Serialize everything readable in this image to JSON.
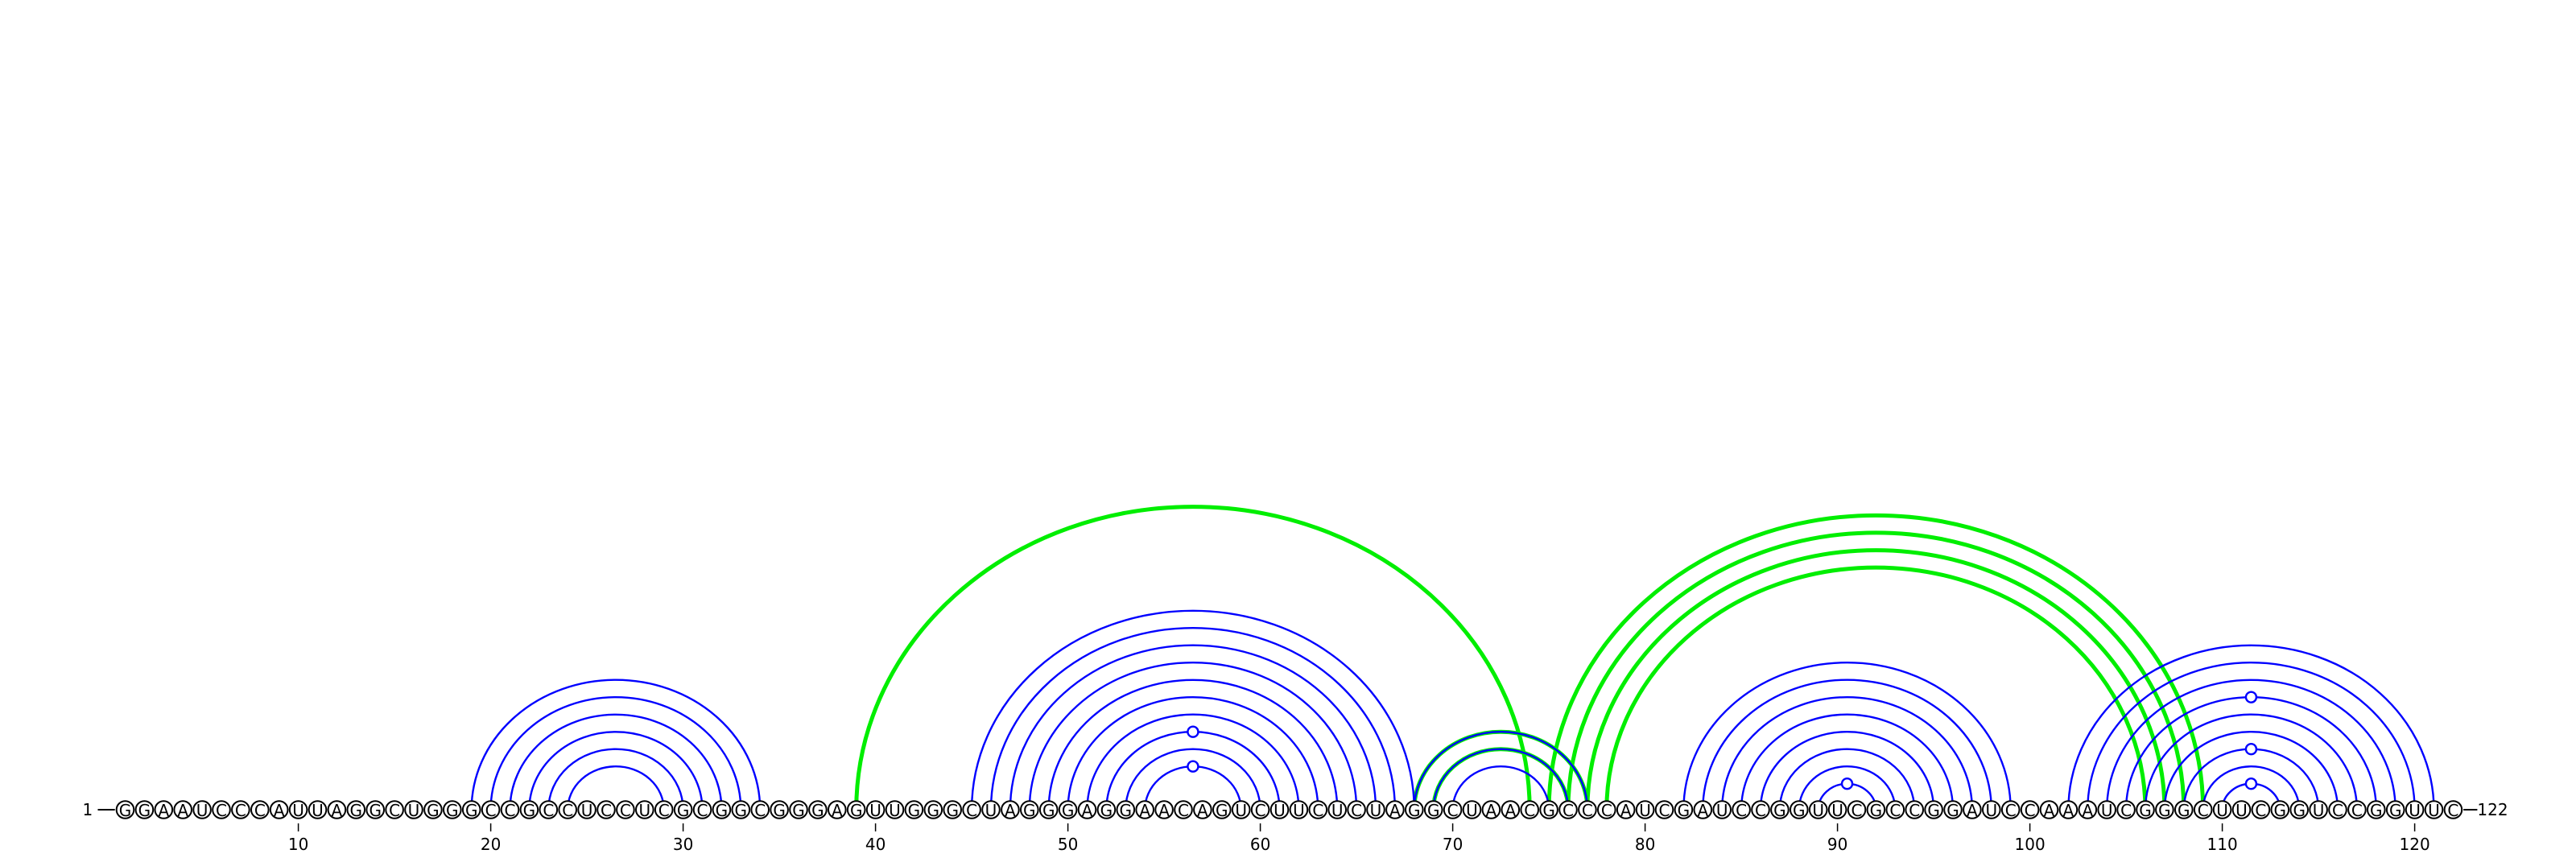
{
  "sequence": "GGAAUCCCAUUAGGCUGGGCCGCCUCCUCGCGGCGGGAGUUGGGCUAGGGAGGAACAGUCUUCUCUAGGCUAACGCCCAUCGAUCCGGUUCGCCGGAUCCAAAUCGGGCUUCGGUCCGGUUC",
  "start_label": "1",
  "end_label": "122",
  "ticks": [
    10,
    20,
    30,
    40,
    50,
    60,
    70,
    80,
    90,
    100,
    110,
    120
  ],
  "colors": {
    "primary_pairs": "#0000ff",
    "tertiary_pairs": "#00ee00",
    "nucleotide_outline": "#000000"
  },
  "pairs_blue": [
    [
      19,
      34
    ],
    [
      20,
      33
    ],
    [
      21,
      32
    ],
    [
      22,
      31
    ],
    [
      23,
      30
    ],
    [
      24,
      29
    ],
    [
      45,
      68
    ],
    [
      46,
      67
    ],
    [
      47,
      66
    ],
    [
      48,
      65
    ],
    [
      49,
      64
    ],
    [
      50,
      63
    ],
    [
      51,
      62
    ],
    [
      52,
      61
    ],
    [
      53,
      60
    ],
    [
      54,
      59
    ],
    [
      68,
      77
    ],
    [
      69,
      76
    ],
    [
      70,
      75
    ],
    [
      82,
      99
    ],
    [
      83,
      98
    ],
    [
      84,
      97
    ],
    [
      85,
      96
    ],
    [
      86,
      95
    ],
    [
      87,
      94
    ],
    [
      88,
      93
    ],
    [
      89,
      92
    ],
    [
      102,
      121
    ],
    [
      103,
      120
    ],
    [
      104,
      119
    ],
    [
      105,
      118
    ],
    [
      106,
      117
    ],
    [
      107,
      116
    ],
    [
      108,
      115
    ],
    [
      109,
      114
    ],
    [
      110,
      113
    ]
  ],
  "pairs_green": [
    [
      39,
      74
    ],
    [
      68,
      77
    ],
    [
      69,
      76
    ],
    [
      75,
      109
    ],
    [
      76,
      108
    ],
    [
      77,
      107
    ],
    [
      78,
      106
    ]
  ],
  "bulges": [
    {
      "i": 54,
      "j": 59,
      "depth": 1
    },
    {
      "i": 52,
      "j": 61,
      "depth": 1
    },
    {
      "i": 89,
      "j": 92,
      "depth": 1
    },
    {
      "i": 110,
      "j": 113,
      "depth": 1
    },
    {
      "i": 108,
      "j": 115,
      "depth": 1
    },
    {
      "i": 105,
      "j": 118,
      "depth": 1
    }
  ]
}
